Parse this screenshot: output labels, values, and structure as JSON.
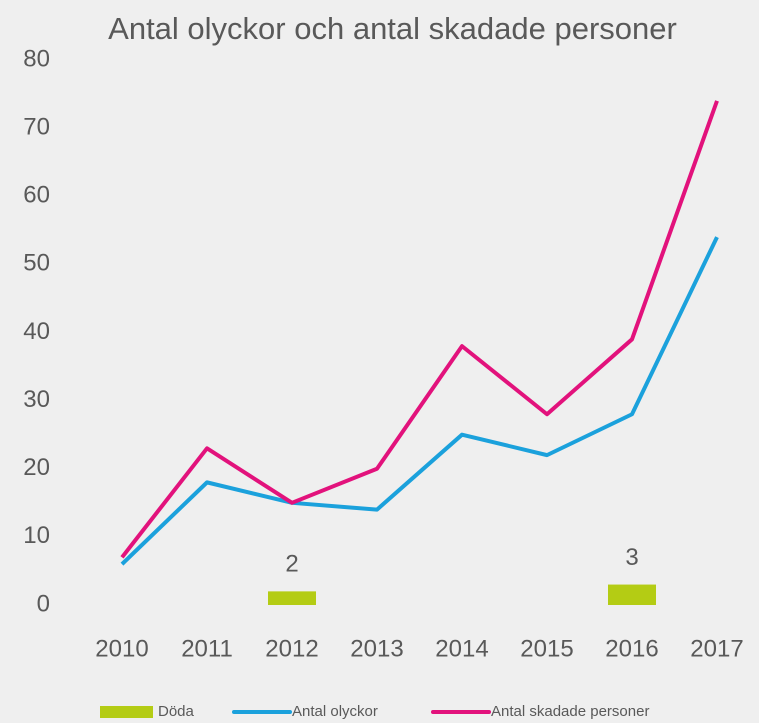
{
  "chart_data": {
    "type": "line",
    "title": "Antal olyckor och antal skadade personer",
    "categories": [
      "2010",
      "2011",
      "2012",
      "2013",
      "2014",
      "2015",
      "2016",
      "2017"
    ],
    "series": [
      {
        "name": "Döda",
        "type": "bar",
        "color": "#b4cc14",
        "values": [
          null,
          null,
          2,
          null,
          null,
          null,
          3,
          null
        ],
        "data_labels": true
      },
      {
        "name": "Antal olyckor",
        "type": "line",
        "color": "#1ba1dc",
        "values": [
          6,
          18,
          15,
          14,
          25,
          22,
          28,
          54
        ]
      },
      {
        "name": "Antal skadade personer",
        "type": "line",
        "color": "#e2127c",
        "values": [
          7,
          23,
          15,
          20,
          38,
          28,
          39,
          74
        ]
      }
    ],
    "ylim": [
      0,
      80
    ],
    "yticks": [
      0,
      10,
      20,
      30,
      40,
      50,
      60,
      70,
      80
    ],
    "grid": false,
    "legend": "bottom"
  }
}
